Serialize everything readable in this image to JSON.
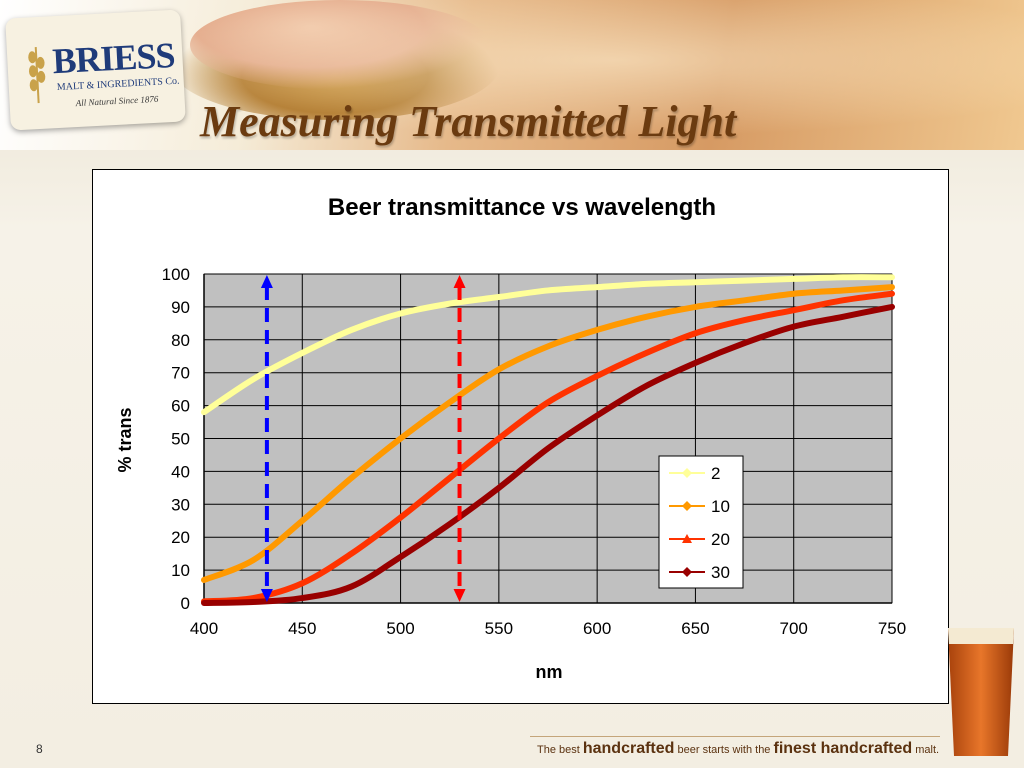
{
  "logo": {
    "name": "BRIESS",
    "subtitle": "MALT & INGREDIENTS Co.",
    "since": "All Natural Since 1876"
  },
  "slide": {
    "title": "Measuring Transmitted Light",
    "number": "8",
    "tagline_1": "The best ",
    "tagline_2": "handcrafted",
    "tagline_3": " beer starts with the ",
    "tagline_4": "finest handcrafted",
    "tagline_5": " malt."
  },
  "colors": {
    "title": "#6b3b10",
    "plot_bg": "#c0c0c0",
    "series_2": "#ffff99",
    "series_10": "#ff9900",
    "series_20": "#ff3300",
    "series_30": "#990000",
    "blue_marker": "#0000ff",
    "red_marker": "#ff0000"
  },
  "chart_data": {
    "type": "line",
    "title": "Beer transmittance vs wavelength",
    "xlabel": "nm",
    "ylabel": "% trans",
    "xlim": [
      400,
      750
    ],
    "ylim": [
      0,
      100
    ],
    "xticks": [
      "400",
      "450",
      "500",
      "550",
      "600",
      "650",
      "700",
      "750"
    ],
    "yticks": [
      "0",
      "10",
      "20",
      "30",
      "40",
      "50",
      "60",
      "70",
      "80",
      "90",
      "100"
    ],
    "grid": true,
    "legend_position": "right-middle",
    "x": [
      400,
      425,
      450,
      475,
      500,
      525,
      550,
      575,
      600,
      625,
      650,
      675,
      700,
      725,
      750
    ],
    "series": [
      {
        "name": "2",
        "values": [
          58,
          68,
          76,
          83,
          88,
          91,
          93,
          95,
          96,
          97,
          97.5,
          98,
          98.5,
          99,
          99
        ]
      },
      {
        "name": "10",
        "values": [
          7,
          13,
          25,
          38,
          50,
          61,
          71,
          78,
          83,
          87,
          90,
          92,
          94,
          95,
          96
        ]
      },
      {
        "name": "20",
        "values": [
          0.5,
          1.5,
          6,
          15,
          26,
          38,
          50,
          61,
          69,
          76,
          82,
          86,
          89,
          92,
          94
        ]
      },
      {
        "name": "30",
        "values": [
          0,
          0.3,
          1.5,
          5,
          14,
          24,
          35,
          47,
          57,
          66,
          73,
          79,
          84,
          87,
          90
        ]
      }
    ],
    "markers": [
      {
        "x": 432,
        "color": "blue"
      },
      {
        "x": 530,
        "color": "red"
      }
    ]
  }
}
